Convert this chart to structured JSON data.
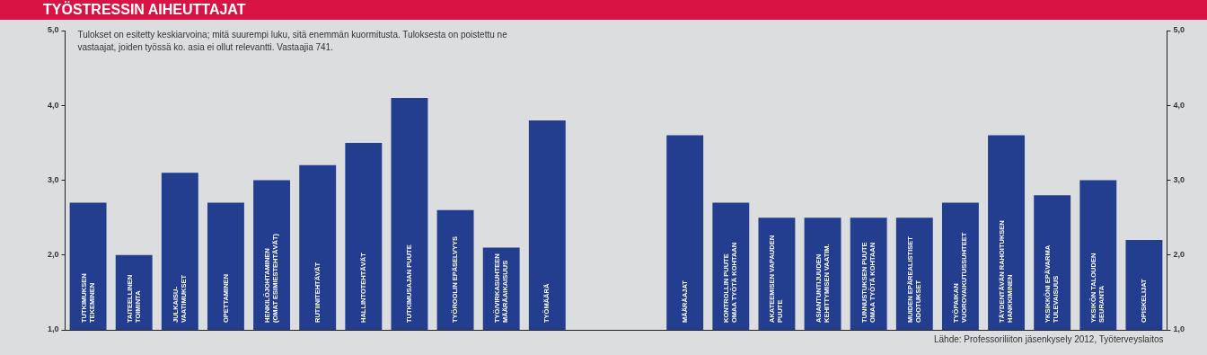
{
  "chart_data": {
    "type": "bar",
    "title": "TYÖSTRESSIN AIHEUTTAJAT",
    "categories": [
      "TUTKIMUKSEN\nTEKEMINEN",
      "TAITEELLINEN\nTOIMINTA",
      "JULKAISU-\nVAATIMUKSET",
      "OPETTAMINEN",
      "HENKILÖJOHTAMINEN\n(OMAT ESIMIESTEHTÄVÄT)",
      "RUTIINITEHTÄVÄT",
      "HALLINTOTEHTÄVÄT",
      "TUTKIMUSAJAN PUUTE",
      "TYÖROOLIN EPÄSELVYYS",
      "TYÖ/VIRKASUHTEEN\nMÄÄRÄAIKAISUUS",
      "TYÖMÄÄRÄ",
      null,
      null,
      "MÄÄRÄAJAT",
      "KONTROLLIN PUUTE\nOMAA TYÖTÄ KOHTAAN",
      "AKATEEMISEN VAPAUDEN\nPUUTE",
      "ASIANTUNTIJUUDEN\nKEHITTYMISEN VAATIM.",
      "TUNNUSTUKSEN PUUTE\nOMAA TYÖTÄ KOHTAAN",
      "MUIDEN EPÄREALISTISET\nODOTUKSET",
      "TYÖPAIKAN\nVUOROVAIKUTUSSUHTEET",
      "TÄYDENTÄVÄN RAHOITUKSEN\nHANKKIMINEN",
      "YKSIKKÖNI EPÄVARMA\nTULEVAISUUS",
      "YKSIKÖN TALOUDEN\nSEURANTA",
      "OPISKELIJAT"
    ],
    "values": [
      2.7,
      2.0,
      3.1,
      2.7,
      3.0,
      3.2,
      3.5,
      4.1,
      2.6,
      2.1,
      3.8,
      null,
      null,
      3.6,
      2.7,
      2.5,
      2.5,
      2.5,
      2.5,
      2.7,
      3.6,
      2.8,
      3.0,
      2.2
    ],
    "color": "#233e8f",
    "ylim": [
      1,
      5
    ],
    "yticks": [
      {
        "value": 1,
        "label": "1,0"
      },
      {
        "value": 2,
        "label": "2,0"
      },
      {
        "value": 3,
        "label": "3,0"
      },
      {
        "value": 4,
        "label": "4,0"
      },
      {
        "value": 5,
        "label": "5,0"
      }
    ],
    "y2lim": [
      1,
      5
    ],
    "y2ticks": [
      {
        "value": 1,
        "label": "1,0"
      },
      {
        "value": 2,
        "label": "2,0"
      },
      {
        "value": 3,
        "label": "3,0"
      },
      {
        "value": 4,
        "label": "4,0"
      },
      {
        "value": 5,
        "label": "5,0"
      }
    ],
    "tick_labels": "y",
    "grid": false,
    "legend": false,
    "annotations": [
      "Tulokset on esitetty keskiarvoina; mitä suurempi luku, sitä enemmän kuormitusta. Tuloksesta on poistettu ne\nvastaajat, joiden työssä ko. asia ei ollut relevantti. Vastaajia 741.",
      "Lähde: Professoriliiton jäsenkysely 2012, Työterveyslaitos"
    ]
  }
}
